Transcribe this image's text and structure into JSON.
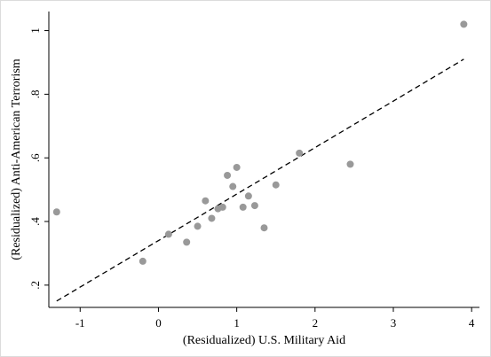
{
  "chart_data": {
    "type": "scatter",
    "xlabel": "(Residualized) U.S. Military Aid",
    "ylabel": "(Residualized) Anti-American Terrorism",
    "xlim": [
      -1.4,
      4.1
    ],
    "ylim": [
      0.13,
      1.06
    ],
    "xticks": [
      -1,
      0,
      1,
      2,
      3,
      4
    ],
    "xtick_labels": [
      "-1",
      "0",
      "1",
      "2",
      "3",
      "4"
    ],
    "yticks": [
      0.2,
      0.4,
      0.6,
      0.8,
      1.0
    ],
    "ytick_labels": [
      ".2",
      ".4",
      ".6",
      ".8",
      "1"
    ],
    "grid": false,
    "legend": "none",
    "point_color": "#999999",
    "fit_line_color": "#000000",
    "fit_line": {
      "x": [
        -1.3,
        3.9
      ],
      "y": [
        0.15,
        0.91
      ],
      "style": "dashed"
    },
    "points": [
      {
        "x": -1.3,
        "y": 0.43
      },
      {
        "x": -0.2,
        "y": 0.275
      },
      {
        "x": 0.13,
        "y": 0.36
      },
      {
        "x": 0.36,
        "y": 0.335
      },
      {
        "x": 0.5,
        "y": 0.385
      },
      {
        "x": 0.6,
        "y": 0.465
      },
      {
        "x": 0.68,
        "y": 0.41
      },
      {
        "x": 0.76,
        "y": 0.44
      },
      {
        "x": 0.82,
        "y": 0.445
      },
      {
        "x": 0.88,
        "y": 0.545
      },
      {
        "x": 0.95,
        "y": 0.51
      },
      {
        "x": 1.0,
        "y": 0.57
      },
      {
        "x": 1.08,
        "y": 0.445
      },
      {
        "x": 1.15,
        "y": 0.48
      },
      {
        "x": 1.23,
        "y": 0.45
      },
      {
        "x": 1.35,
        "y": 0.38
      },
      {
        "x": 1.5,
        "y": 0.515
      },
      {
        "x": 1.8,
        "y": 0.615
      },
      {
        "x": 2.45,
        "y": 0.58
      },
      {
        "x": 3.9,
        "y": 1.02
      }
    ]
  }
}
